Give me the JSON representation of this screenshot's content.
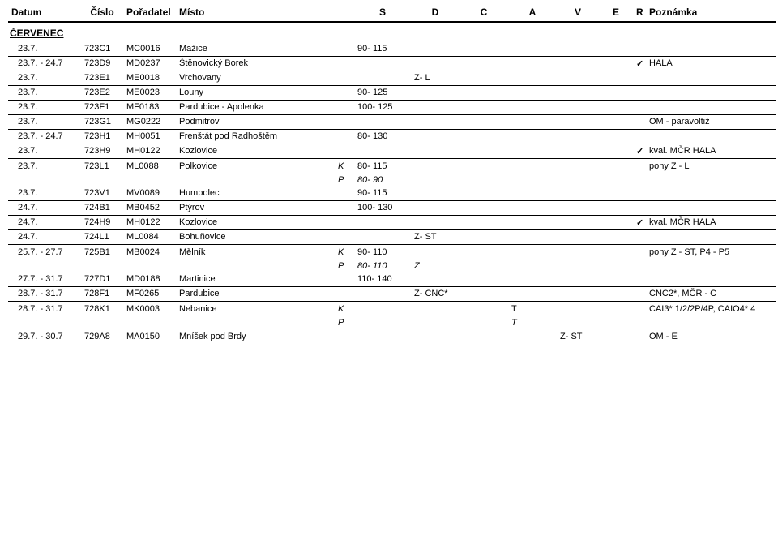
{
  "header": {
    "datum": "Datum",
    "cislo": "Číslo",
    "poradatel": "Pořadatel",
    "misto": "Místo",
    "s": "S",
    "d": "D",
    "c": "C",
    "a": "A",
    "v": "V",
    "e": "E",
    "r": "R",
    "poznamka": "Poznámka"
  },
  "month_label": "ČERVENEC",
  "rows": [
    {
      "datum": "23.7.",
      "cislo": "723C1",
      "porad": "MC0016",
      "misto": "Mažice",
      "kp": "",
      "s": "90- 115",
      "d": "",
      "c": "",
      "a": "",
      "v": "",
      "e": "",
      "r": "",
      "pozn": ""
    },
    {
      "datum": "23.7. - 24.7",
      "cislo": "723D9",
      "porad": "MD0237",
      "misto": "Štěnovický Borek",
      "kp": "",
      "s": "",
      "d": "",
      "c": "",
      "a": "",
      "v": "",
      "e": "",
      "r": "check",
      "pozn": "HALA"
    },
    {
      "datum": "23.7.",
      "cislo": "723E1",
      "porad": "ME0018",
      "misto": "Vrchovany",
      "kp": "",
      "s": "",
      "d": "Z- L",
      "c": "",
      "a": "",
      "v": "",
      "e": "",
      "r": "",
      "pozn": ""
    },
    {
      "datum": "23.7.",
      "cislo": "723E2",
      "porad": "ME0023",
      "misto": "Louny",
      "kp": "",
      "s": "90- 125",
      "d": "",
      "c": "",
      "a": "",
      "v": "",
      "e": "",
      "r": "",
      "pozn": ""
    },
    {
      "datum": "23.7.",
      "cislo": "723F1",
      "porad": "MF0183",
      "misto": "Pardubice - Apolenka",
      "kp": "",
      "s": "100- 125",
      "d": "",
      "c": "",
      "a": "",
      "v": "",
      "e": "",
      "r": "",
      "pozn": ""
    },
    {
      "datum": "23.7.",
      "cislo": "723G1",
      "porad": "MG0222",
      "misto": "Podmitrov",
      "kp": "",
      "s": "",
      "d": "",
      "c": "",
      "a": "",
      "v": "",
      "e": "",
      "r": "",
      "pozn": "OM - paravoltiž"
    },
    {
      "datum": "23.7. - 24.7",
      "cislo": "723H1",
      "porad": "MH0051",
      "misto": "Frenštát pod Radhoštěm",
      "kp": "",
      "s": "80- 130",
      "d": "",
      "c": "",
      "a": "",
      "v": "",
      "e": "",
      "r": "",
      "pozn": ""
    },
    {
      "datum": "23.7.",
      "cislo": "723H9",
      "porad": "MH0122",
      "misto": "Kozlovice",
      "kp": "",
      "s": "",
      "d": "",
      "c": "",
      "a": "",
      "v": "",
      "e": "",
      "r": "check",
      "pozn": "kval. MČR  HALA"
    },
    {
      "group": true,
      "lines": [
        {
          "datum": "23.7.",
          "cislo": "723L1",
          "porad": "ML0088",
          "misto": "Polkovice",
          "kp": "K",
          "s": "80- 115",
          "d": "",
          "c": "",
          "a": "",
          "v": "",
          "e": "",
          "r": "",
          "pozn": "pony Z - L"
        },
        {
          "datum": "",
          "cislo": "",
          "porad": "",
          "misto": "",
          "kp": "P",
          "s": "80- 90",
          "d": "",
          "c": "",
          "a": "",
          "v": "",
          "e": "",
          "r": "",
          "pozn": "",
          "italic": true
        },
        {
          "datum": "23.7.",
          "cislo": "723V1",
          "porad": "MV0089",
          "misto": "Humpolec",
          "kp": "",
          "s": "90- 115",
          "d": "",
          "c": "",
          "a": "",
          "v": "",
          "e": "",
          "r": "",
          "pozn": ""
        }
      ]
    },
    {
      "datum": "24.7.",
      "cislo": "724B1",
      "porad": "MB0452",
      "misto": "Ptýrov",
      "kp": "",
      "s": "100- 130",
      "d": "",
      "c": "",
      "a": "",
      "v": "",
      "e": "",
      "r": "",
      "pozn": ""
    },
    {
      "datum": "24.7.",
      "cislo": "724H9",
      "porad": "MH0122",
      "misto": "Kozlovice",
      "kp": "",
      "s": "",
      "d": "",
      "c": "",
      "a": "",
      "v": "",
      "e": "",
      "r": "check",
      "pozn": "kval. MČR  HALA"
    },
    {
      "datum": "24.7.",
      "cislo": "724L1",
      "porad": "ML0084",
      "misto": "Bohuňovice",
      "kp": "",
      "s": "",
      "d": "Z- ST",
      "c": "",
      "a": "",
      "v": "",
      "e": "",
      "r": "",
      "pozn": ""
    },
    {
      "group": true,
      "lines": [
        {
          "datum": "25.7. - 27.7",
          "cislo": "725B1",
          "porad": "MB0024",
          "misto": "Mělník",
          "kp": "K",
          "s": "90- 110",
          "d": "",
          "c": "",
          "a": "",
          "v": "",
          "e": "",
          "r": "",
          "pozn": "pony Z - ST, P4 - P5"
        },
        {
          "datum": "",
          "cislo": "",
          "porad": "",
          "misto": "",
          "kp": "P",
          "s": "80- 110",
          "d": "Z",
          "c": "",
          "a": "",
          "v": "",
          "e": "",
          "r": "",
          "pozn": "",
          "italic": true
        },
        {
          "datum": "27.7. - 31.7",
          "cislo": "727D1",
          "porad": "MD0188",
          "misto": "Martinice",
          "kp": "",
          "s": "110- 140",
          "d": "",
          "c": "",
          "a": "",
          "v": "",
          "e": "",
          "r": "",
          "pozn": ""
        }
      ]
    },
    {
      "datum": "28.7. - 31.7",
      "cislo": "728F1",
      "porad": "MF0265",
      "misto": "Pardubice",
      "kp": "",
      "s": "",
      "d": "Z- CNC*",
      "c": "",
      "a": "",
      "v": "",
      "e": "",
      "r": "",
      "pozn": "CNC2*, MČR - C"
    },
    {
      "group": true,
      "lines": [
        {
          "datum": "28.7. - 31.7",
          "cislo": "728K1",
          "porad": "MK0003",
          "misto": "Nebanice",
          "kp": "K",
          "s": "",
          "d": "",
          "c": "",
          "a": "T",
          "v": "",
          "e": "",
          "r": "",
          "pozn": "CAI3* 1/2/2P/4P, CAIO4* 4"
        },
        {
          "datum": "",
          "cislo": "",
          "porad": "",
          "misto": "",
          "kp": "P",
          "s": "",
          "d": "",
          "c": "",
          "a": "T",
          "v": "",
          "e": "",
          "r": "",
          "pozn": "",
          "italic": true
        },
        {
          "datum": "29.7. - 30.7",
          "cislo": "729A8",
          "porad": "MA0150",
          "misto": "Mníšek pod Brdy",
          "kp": "",
          "s": "",
          "d": "",
          "c": "",
          "a": "",
          "v": "Z- ST",
          "e": "",
          "r": "",
          "pozn": "OM - E"
        }
      ]
    }
  ]
}
